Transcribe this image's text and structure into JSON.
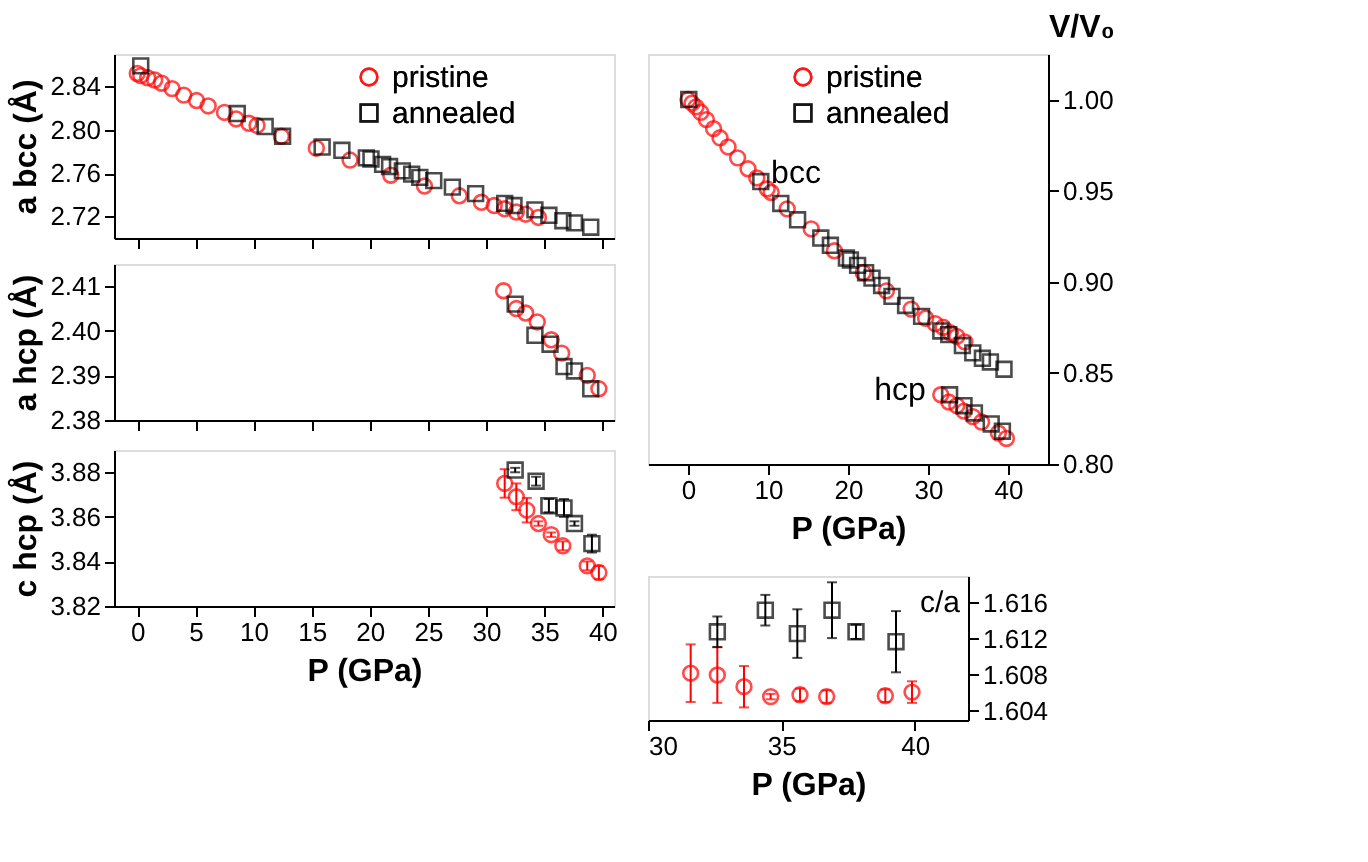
{
  "chart_data": [
    {
      "type": "scatter",
      "ylabel": "a bcc (Å)",
      "xlim": [
        -2,
        41
      ],
      "xticks": [
        0,
        5,
        10,
        15,
        20,
        25,
        30,
        35,
        40
      ],
      "ylim": [
        2.7,
        2.87
      ],
      "yticks": [
        2.72,
        2.76,
        {
          "value": 2.8,
          "label": "2.80"
        },
        2.84
      ],
      "tick_labels": "y",
      "legend": "top right",
      "grid": false,
      "series": [
        {
          "name": "pristine",
          "color": "#ff0000",
          "marker": "circle",
          "x": [
            0,
            0.3,
            0.9,
            1.5,
            2.1,
            3.0,
            4.0,
            5.1,
            6.1,
            7.5,
            8.5,
            9.6,
            10.3,
            12.4,
            15.4,
            18.3,
            21.8,
            24.7,
            27.7,
            29.6,
            30.7,
            31.6,
            32.6,
            33.4,
            34.5
          ],
          "values": [
            2.852,
            2.85,
            2.848,
            2.846,
            2.843,
            2.838,
            2.832,
            2.827,
            2.822,
            2.816,
            2.81,
            2.806,
            2.804,
            2.794,
            2.783,
            2.772,
            2.758,
            2.748,
            2.739,
            2.733,
            2.73,
            2.727,
            2.724,
            2.722,
            2.719
          ]
        },
        {
          "name": "annealed",
          "color": "#000000",
          "marker": "square",
          "x": [
            0.3,
            8.6,
            11.0,
            12.5,
            15.9,
            17.6,
            19.7,
            20.1,
            21.1,
            21.7,
            22.8,
            23.6,
            24.3,
            25.5,
            27.1,
            29.1,
            31.6,
            32.4,
            34.2,
            35.4,
            36.6,
            37.6,
            39.0
          ],
          "values": [
            2.859,
            2.815,
            2.803,
            2.794,
            2.784,
            2.781,
            2.774,
            2.773,
            2.768,
            2.766,
            2.762,
            2.759,
            2.756,
            2.753,
            2.747,
            2.741,
            2.732,
            2.73,
            2.726,
            2.721,
            2.716,
            2.714,
            2.71
          ]
        }
      ]
    },
    {
      "type": "scatter",
      "ylabel": "a hcp (Å)",
      "xlim": [
        -2,
        41
      ],
      "xticks": [
        0,
        5,
        10,
        15,
        20,
        25,
        30,
        35,
        40
      ],
      "ylim": [
        2.38,
        2.415
      ],
      "yticks": [
        2.38,
        2.39,
        {
          "value": 2.4,
          "label": "2.40"
        },
        2.41
      ],
      "tick_labels": "y",
      "grid": false,
      "series": [
        {
          "color": "#ff0000",
          "marker": "circle",
          "x": [
            31.5,
            32.6,
            33.4,
            34.4,
            35.6,
            36.5,
            38.7,
            39.7
          ],
          "values": [
            2.409,
            2.405,
            2.404,
            2.402,
            2.398,
            2.395,
            2.39,
            2.387
          ]
        },
        {
          "color": "#000000",
          "marker": "square",
          "x": [
            32.5,
            34.2,
            35.5,
            36.7,
            37.6,
            39.0
          ],
          "values": [
            2.406,
            2.399,
            2.397,
            2.392,
            2.391,
            2.387
          ]
        }
      ]
    },
    {
      "type": "scatter",
      "xlabel": "P (GPa)",
      "ylabel": "c hcp (Å)",
      "xlim": [
        -2,
        41
      ],
      "xticks": [
        0,
        5,
        10,
        15,
        20,
        25,
        30,
        35,
        40
      ],
      "ylim": [
        3.82,
        3.89
      ],
      "yticks": [
        3.82,
        3.84,
        3.86,
        3.88
      ],
      "grid": false,
      "series": [
        {
          "color": "#ff0000",
          "marker": "circle",
          "x": [
            31.6,
            32.6,
            33.5,
            34.5,
            35.6,
            36.6,
            38.7,
            39.7
          ],
          "values": [
            3.875,
            3.869,
            3.863,
            3.857,
            3.852,
            3.847,
            3.838,
            3.835
          ],
          "errors": [
            0.0064,
            0.006,
            0.0055,
            0.001,
            0.001,
            0.002,
            0.002,
            0.003
          ]
        },
        {
          "color": "#000000",
          "marker": "square",
          "x": [
            32.5,
            34.3,
            35.4,
            36.7,
            37.6,
            39.1
          ],
          "values": [
            3.881,
            3.876,
            3.865,
            3.864,
            3.857,
            3.848
          ],
          "errors": [
            0.001,
            0.002,
            0.003,
            0.004,
            0.001,
            0.004
          ]
        }
      ]
    },
    {
      "type": "scatter",
      "xlabel": "P (GPa)",
      "ylabel": "c/a",
      "xlim": [
        30,
        42
      ],
      "xticks": [
        30,
        35,
        40
      ],
      "ylim": [
        1.603,
        1.619
      ],
      "yticks": [
        1.604,
        1.608,
        1.612,
        1.616
      ],
      "grid": false,
      "series": [
        {
          "color": "#ff0000",
          "marker": "circle",
          "x": [
            31.6,
            32.6,
            33.6,
            34.6,
            35.7,
            36.7,
            38.9,
            39.9
          ],
          "values": [
            1.6082,
            1.608,
            1.6067,
            1.6056,
            1.6058,
            1.6056,
            1.6057,
            1.6061
          ],
          "errors": [
            0.0032,
            0.0031,
            0.0023,
            0.0003,
            0.0007,
            0.0007,
            0.0007,
            0.0012
          ]
        },
        {
          "color": "#000000",
          "marker": "square",
          "x": [
            32.6,
            34.4,
            35.6,
            36.9,
            37.8,
            39.3
          ],
          "values": [
            1.6128,
            1.6152,
            1.6126,
            1.6152,
            1.6128,
            1.6117
          ],
          "errors": [
            0.0017,
            0.0017,
            0.0027,
            0.0031,
            0.0008,
            0.0034
          ]
        }
      ]
    },
    {
      "type": "scatter",
      "xlabel": "P (GPa)",
      "ylabel": "V/V₀",
      "xlim": [
        -5,
        45
      ],
      "xticks": [
        0,
        10,
        20,
        30,
        40
      ],
      "ylim": [
        0.8,
        1.025
      ],
      "yticks": [
        {
          "value": 0.8,
          "label": "0.80"
        },
        0.85,
        {
          "value": 0.9,
          "label": "0.90"
        },
        0.95,
        {
          "value": 1.0,
          "label": "1.00"
        }
      ],
      "legend": "top right",
      "grid": false,
      "annotations": [
        "bcc",
        "hcp"
      ],
      "series": [
        {
          "name": "pristine",
          "color": "#ff0000",
          "marker": "circle",
          "x": [
            0,
            0.5,
            1.0,
            1.6,
            2.3,
            3.2,
            4.0,
            5.0,
            6.2,
            7.5,
            8.6,
            9.9,
            10.4,
            12.4,
            15.4,
            18.3,
            21.9,
            24.8,
            27.9,
            29.7,
            30.9,
            31.9,
            32.8,
            33.6,
            34.6,
            31.6,
            32.6,
            33.6,
            34.5,
            35.6,
            36.7,
            38.8,
            39.8
          ],
          "values": [
            1.0,
            0.998,
            0.996,
            0.993,
            0.989,
            0.984,
            0.979,
            0.974,
            0.968,
            0.962,
            0.957,
            0.951,
            0.949,
            0.94,
            0.929,
            0.917,
            0.905,
            0.895,
            0.885,
            0.88,
            0.877,
            0.875,
            0.872,
            0.87,
            0.867,
            0.838,
            0.834,
            0.832,
            0.829,
            0.826,
            0.823,
            0.817,
            0.814
          ]
        },
        {
          "name": "annealed",
          "color": "#000000",
          "marker": "square",
          "x": [
            0.1,
            9.1,
            11.6,
            13.7,
            16.6,
            17.8,
            19.8,
            20.3,
            21.2,
            22.2,
            23.0,
            24.2,
            25.5,
            27.2,
            29.2,
            31.6,
            32.6,
            34.3,
            35.6,
            36.8,
            37.8,
            39.5,
            32.7,
            34.5,
            35.8,
            37.9,
            39.3
          ],
          "values": [
            1.0,
            0.955,
            0.943,
            0.934,
            0.924,
            0.92,
            0.913,
            0.912,
            0.909,
            0.905,
            0.902,
            0.898,
            0.892,
            0.887,
            0.881,
            0.873,
            0.871,
            0.865,
            0.861,
            0.858,
            0.856,
            0.852,
            0.838,
            0.832,
            0.828,
            0.822,
            0.818
          ]
        }
      ]
    }
  ]
}
